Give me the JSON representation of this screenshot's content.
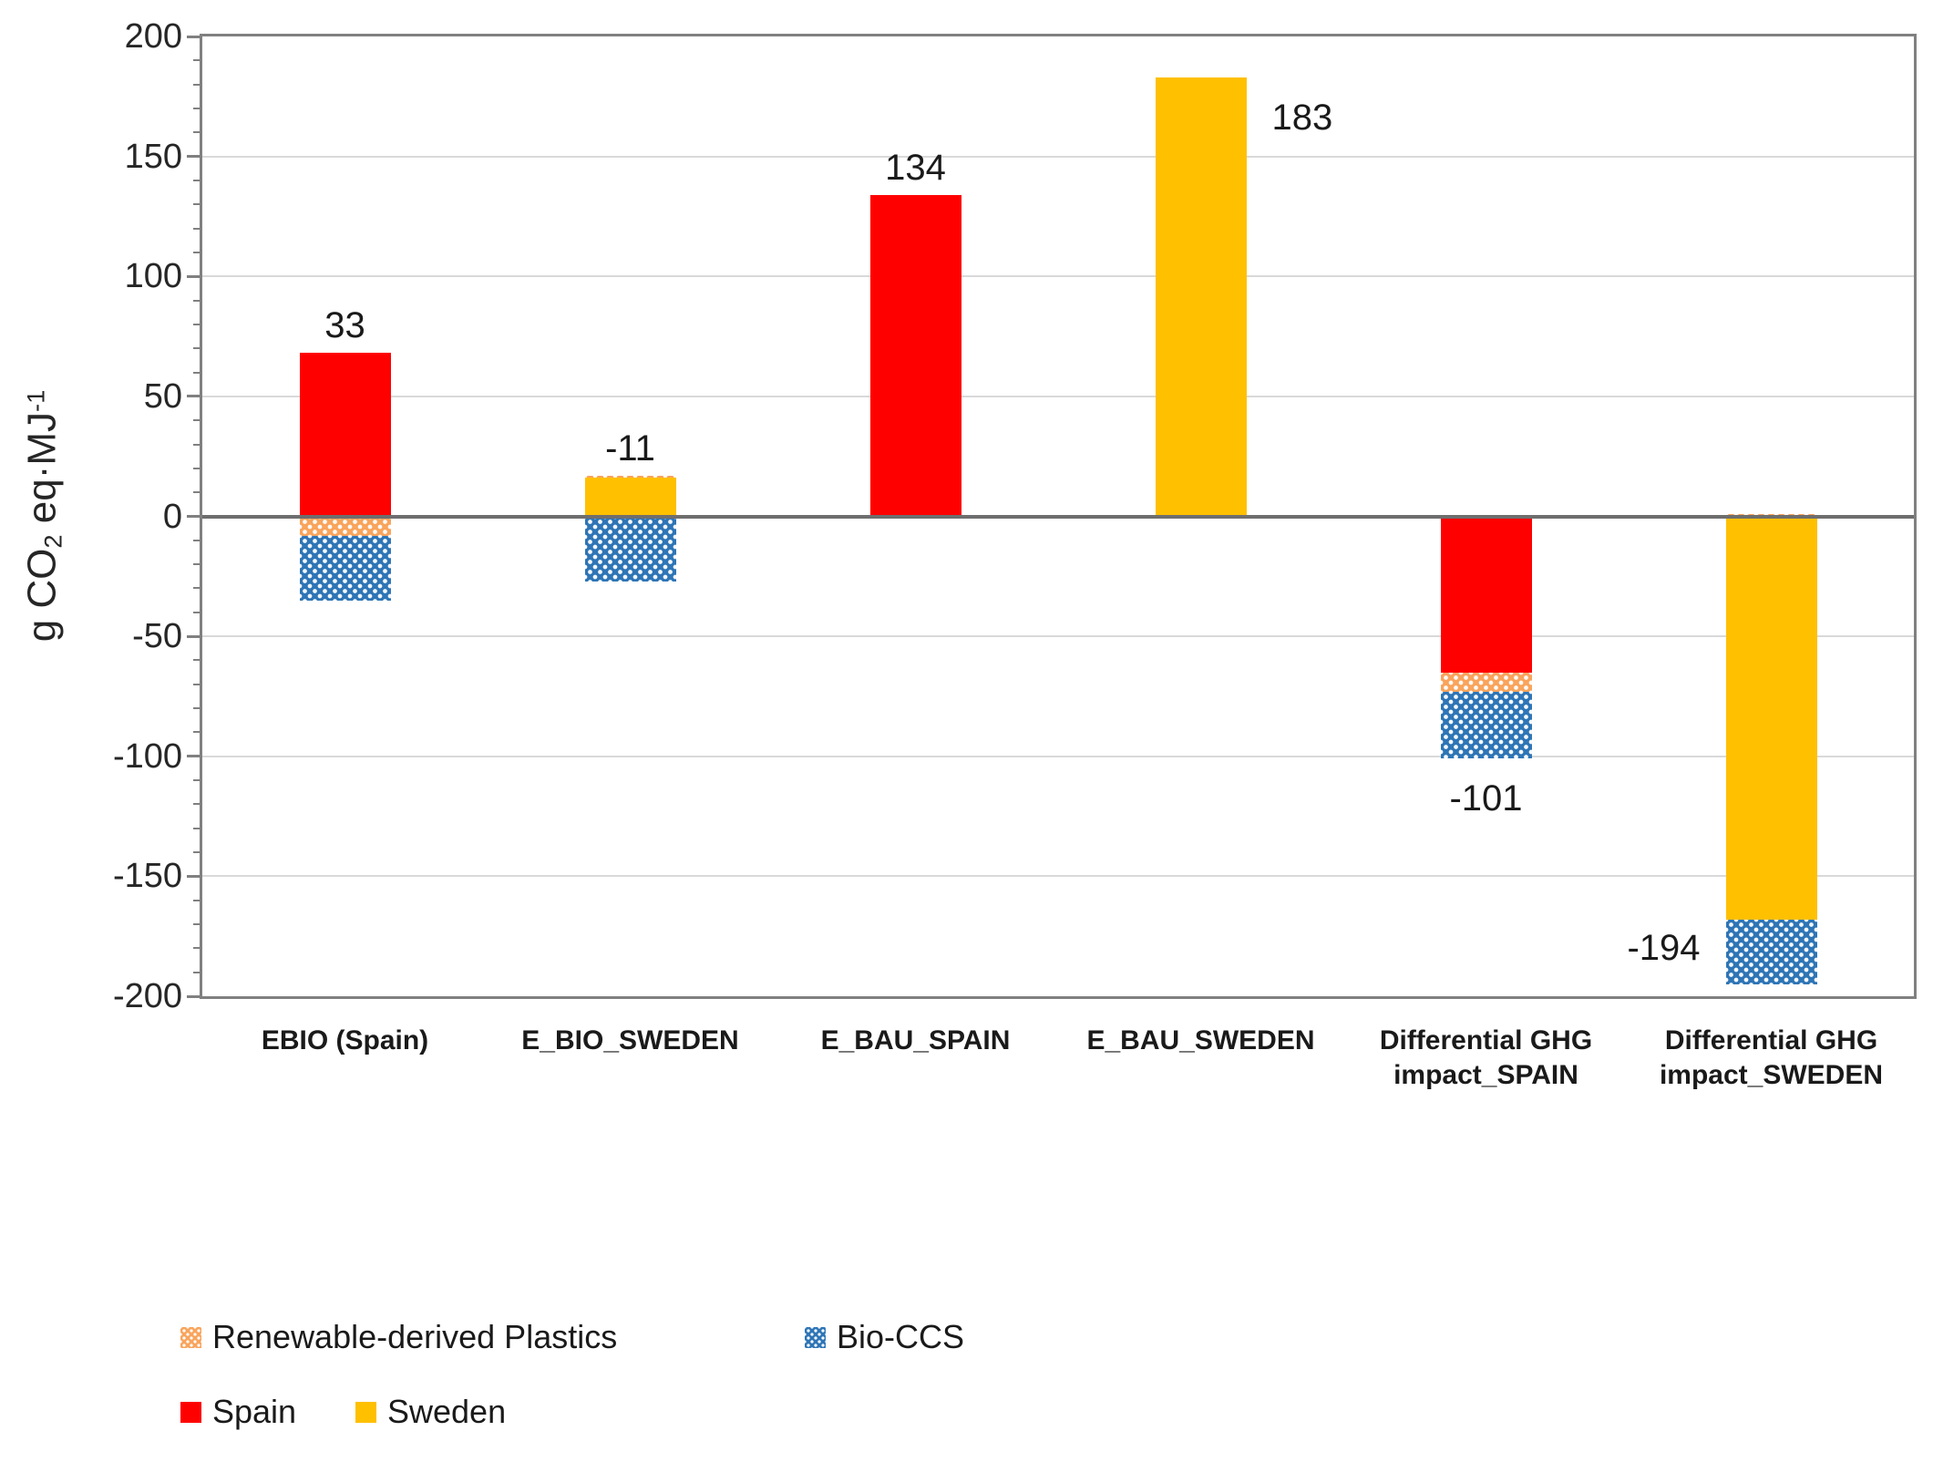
{
  "chart_data": {
    "type": "bar",
    "subtype": "stacked-column",
    "title": "",
    "ylabel_text": "g CO2 eq·MJ-1",
    "ylabel_parts": {
      "pre": "g CO",
      "sub": "2",
      "mid": " eq·MJ",
      "sup": "-1"
    },
    "axis": {
      "ymin": -200,
      "ymax": 200,
      "major_step": 50,
      "minor_step": 10
    },
    "grid": true,
    "ytick_labels": [
      "200",
      "150",
      "100",
      "50",
      "0",
      "-50",
      "-100",
      "-150",
      "-200"
    ],
    "categories": [
      "EBIO (Spain)",
      "E_BIO_SWEDEN",
      "E_BAU_SPAIN",
      "E_BAU_SWEDEN",
      "Differential GHG impact_SPAIN",
      "Differential GHG impact_SWEDEN"
    ],
    "series_styles": [
      {
        "name": "Renewable-derived Plastics",
        "color": "#F9A45C",
        "pattern": "dots"
      },
      {
        "name": "Bio-CCS",
        "color": "#2E75B6",
        "pattern": "dots"
      },
      {
        "name": "Spain",
        "color": "#FF0000",
        "pattern": "solid"
      },
      {
        "name": "Sweden",
        "color": "#FFC000",
        "pattern": "solid"
      }
    ],
    "bars": [
      {
        "category": "EBIO (Spain)",
        "segments": [
          {
            "series": "Spain",
            "value": 68
          },
          {
            "series": "Renewable-derived Plastics",
            "value": -8
          },
          {
            "series": "Bio-CCS",
            "value": -27
          }
        ],
        "total_label": "33",
        "label_pos": "above"
      },
      {
        "category": "E_BIO_SWEDEN",
        "segments": [
          {
            "series": "Sweden",
            "value": 16
          },
          {
            "series": "Renewable-derived Plastics",
            "value": 1
          },
          {
            "series": "Bio-CCS",
            "value": -27
          }
        ],
        "total_label": "-11",
        "label_pos": "above"
      },
      {
        "category": "E_BAU_SPAIN",
        "segments": [
          {
            "series": "Spain",
            "value": 134
          }
        ],
        "total_label": "134",
        "label_pos": "above"
      },
      {
        "category": "E_BAU_SWEDEN",
        "segments": [
          {
            "series": "Sweden",
            "value": 183
          }
        ],
        "total_label": "183",
        "label_pos": "right-top"
      },
      {
        "category": "Differential GHG impact_SPAIN",
        "segments": [
          {
            "series": "Spain",
            "value": -65
          },
          {
            "series": "Renewable-derived Plastics",
            "value": -8
          },
          {
            "series": "Bio-CCS",
            "value": -28
          }
        ],
        "total_label": "-101",
        "label_pos": "below"
      },
      {
        "category": "Differential GHG impact_SWEDEN",
        "segments": [
          {
            "series": "Renewable-derived Plastics",
            "value": 1
          },
          {
            "series": "Sweden",
            "value": -168
          },
          {
            "series": "Bio-CCS",
            "value": -27
          }
        ],
        "total_label": "-194",
        "label_pos": "left-bottom"
      }
    ],
    "legend": {
      "position": "bottom-left",
      "rows": [
        {
          "items": [
            {
              "label": "Renewable-derived Plastics",
              "series": "Renewable-derived Plastics"
            },
            {
              "label": "Bio-CCS",
              "series": "Bio-CCS"
            }
          ]
        },
        {
          "items": [
            {
              "label": "Spain",
              "series": "Spain"
            },
            {
              "label": "Sweden",
              "series": "Sweden"
            }
          ]
        }
      ]
    },
    "colors": {
      "gridline": "#D9D9D9",
      "axis": "#808080",
      "zero_line": "#6E6E6E",
      "text": "#1A1A1A"
    }
  }
}
